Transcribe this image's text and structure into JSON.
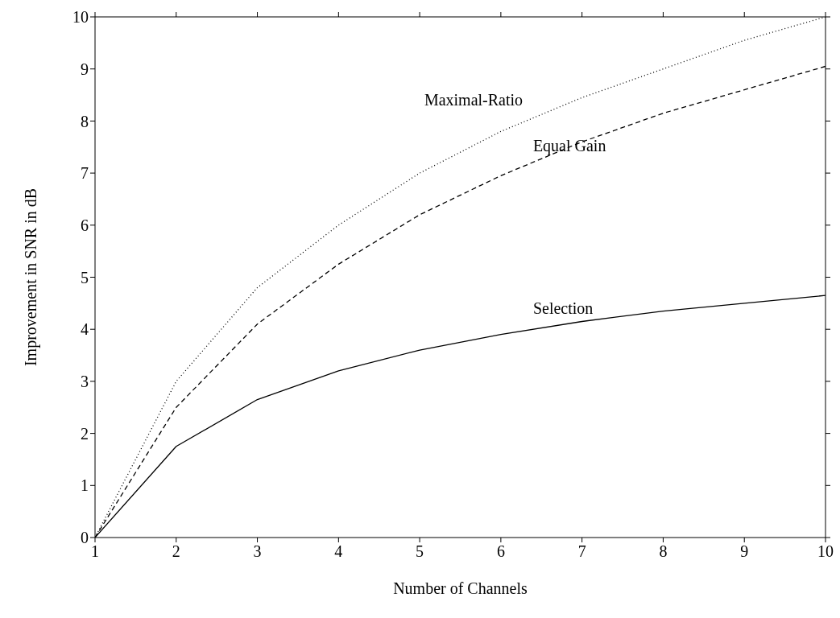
{
  "chart_data": {
    "type": "line",
    "xlabel": "Number of Channels",
    "ylabel": "Improvement in SNR in dB",
    "x": [
      1,
      2,
      3,
      4,
      5,
      6,
      7,
      8,
      9,
      10
    ],
    "series": [
      {
        "name": "Maximal-Ratio",
        "color": "#000000",
        "line_style": "dotted",
        "values": [
          0,
          3.0,
          4.8,
          6.0,
          7.0,
          7.8,
          8.45,
          9.0,
          9.55,
          10.0
        ]
      },
      {
        "name": "Equal Gain",
        "color": "#000000",
        "line_style": "dashed",
        "values": [
          0,
          2.5,
          4.1,
          5.25,
          6.2,
          6.95,
          7.6,
          8.15,
          8.6,
          9.05
        ]
      },
      {
        "name": "Selection",
        "color": "#000000",
        "line_style": "solid",
        "values": [
          0,
          1.75,
          2.65,
          3.2,
          3.6,
          3.9,
          4.15,
          4.35,
          4.5,
          4.65
        ]
      }
    ],
    "xlim": [
      1,
      10
    ],
    "xticks": [
      1,
      2,
      3,
      4,
      5,
      6,
      7,
      8,
      9,
      10
    ],
    "ylim": [
      0,
      10
    ],
    "yticks": [
      0,
      1,
      2,
      3,
      4,
      5,
      6,
      7,
      8,
      9,
      10
    ],
    "grid": false,
    "legend": false,
    "marker": "none"
  }
}
